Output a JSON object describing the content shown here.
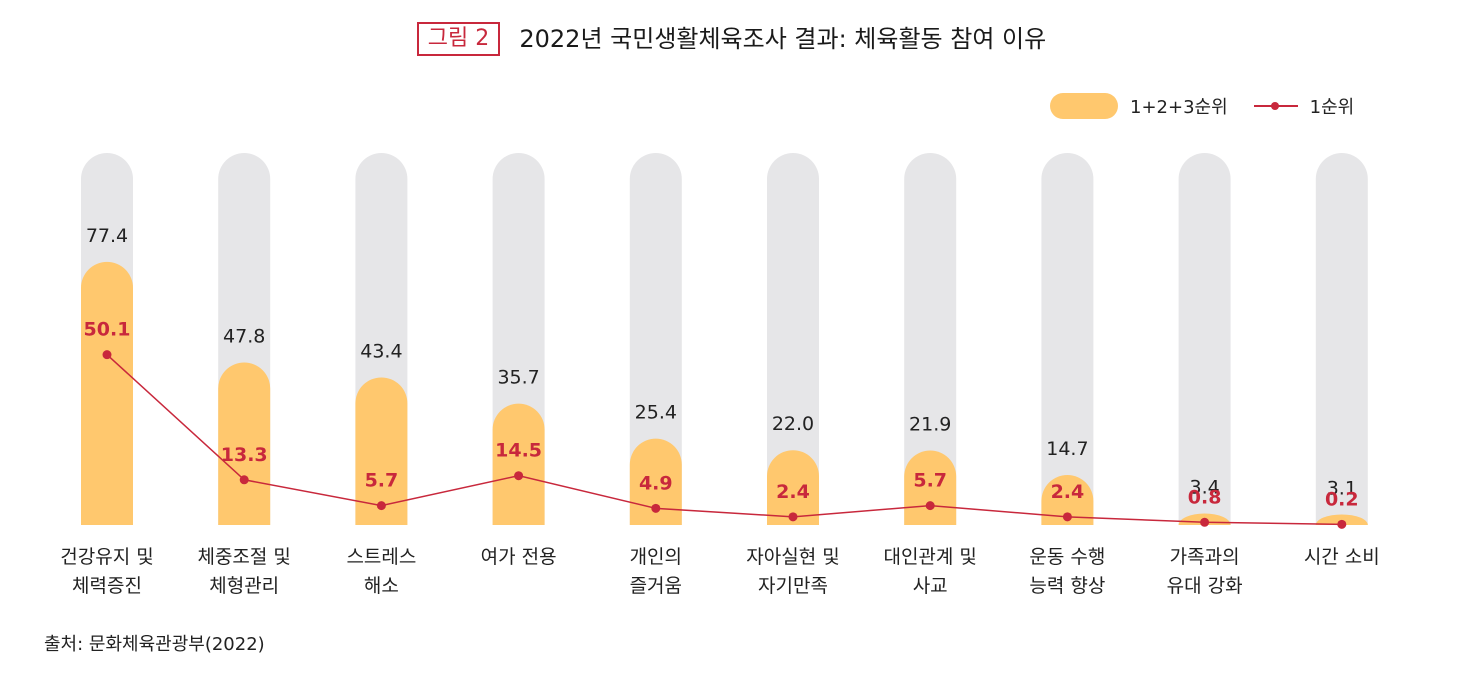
{
  "figure": {
    "badge": "그림 2",
    "title": "2022년 국민생활체육조사 결과: 체육활동 참여 이유"
  },
  "legend": {
    "bar_label": "1+2+3순위",
    "line_label": "1순위"
  },
  "source": "출처: 문화체육관광부(2022)",
  "colors": {
    "bar": "#ffc86e",
    "track": "#e6e6e8",
    "line": "#c8283c",
    "badge": "#c8283c"
  },
  "chart_data": {
    "type": "bar",
    "title": "2022년 국민생활체육조사 결과: 체육활동 참여 이유",
    "categories": [
      [
        "건강유지 및",
        "체력증진"
      ],
      [
        "체중조절 및",
        "체형관리"
      ],
      [
        "스트레스",
        "해소"
      ],
      [
        "여가 전용"
      ],
      [
        "개인의",
        "즐거움"
      ],
      [
        "자아실현 및",
        "자기만족"
      ],
      [
        "대인관계 및",
        "사교"
      ],
      [
        "운동 수행",
        "능력 향상"
      ],
      [
        "가족과의",
        "유대 강화"
      ],
      [
        "시간 소비"
      ]
    ],
    "series": [
      {
        "name": "1+2+3순위",
        "type": "bar",
        "values": [
          77.4,
          47.8,
          43.4,
          35.7,
          25.4,
          22.0,
          21.9,
          14.7,
          3.4,
          3.1
        ]
      },
      {
        "name": "1순위",
        "type": "line",
        "values": [
          50.1,
          13.3,
          5.7,
          14.5,
          4.9,
          2.4,
          5.7,
          2.4,
          0.8,
          0.2
        ]
      }
    ],
    "value_labels": {
      "bar": [
        "77.4",
        "47.8",
        "43.4",
        "35.7",
        "25.4",
        "22.0",
        "21.9",
        "14.7",
        "3.4",
        "3.1"
      ],
      "line": [
        "50.1",
        "13.3",
        "5.7",
        "14.5",
        "4.9",
        "2.4",
        "5.7",
        "2.4",
        "0.8",
        "0.2"
      ]
    },
    "ylim": [
      0,
      100
    ],
    "grid": false,
    "legend_position": "top-right"
  }
}
